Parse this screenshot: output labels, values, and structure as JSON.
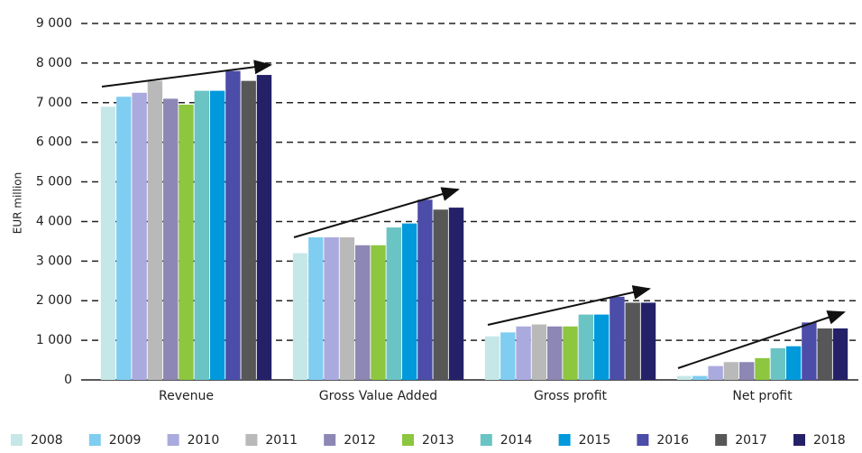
{
  "chart_data": {
    "type": "bar",
    "y_label": "EUR million",
    "categories": [
      "Revenue",
      "Gross Value Added",
      "Gross profit",
      "Net profit"
    ],
    "series": [
      {
        "name": "2008",
        "color": "#c6e7e8",
        "values": [
          6900,
          3200,
          1100,
          100
        ]
      },
      {
        "name": "2009",
        "color": "#7fcdf1",
        "values": [
          7150,
          3600,
          1200,
          100
        ]
      },
      {
        "name": "2010",
        "color": "#aaaadf",
        "values": [
          7250,
          3600,
          1350,
          350
        ]
      },
      {
        "name": "2011",
        "color": "#b9b9b9",
        "values": [
          7550,
          3600,
          1400,
          450
        ]
      },
      {
        "name": "2012",
        "color": "#8d87b5",
        "values": [
          7100,
          3400,
          1350,
          450
        ]
      },
      {
        "name": "2013",
        "color": "#8dc63f",
        "values": [
          6950,
          3400,
          1350,
          550
        ]
      },
      {
        "name": "2014",
        "color": "#6bc4c4",
        "values": [
          7300,
          3850,
          1650,
          800
        ]
      },
      {
        "name": "2015",
        "color": "#0099dc",
        "values": [
          7300,
          3950,
          1650,
          850
        ]
      },
      {
        "name": "2016",
        "color": "#4c4ca9",
        "values": [
          7800,
          4550,
          2100,
          1450
        ]
      },
      {
        "name": "2017",
        "color": "#575757",
        "values": [
          7550,
          4300,
          1950,
          1300
        ]
      },
      {
        "name": "2018",
        "color": "#242168",
        "values": [
          7700,
          4350,
          1950,
          1300
        ]
      }
    ],
    "ylim": [
      0,
      9000
    ],
    "yticks": [
      0,
      {
        "value": 1000,
        "label": "1 000"
      },
      {
        "value": 2000,
        "label": "2 000"
      },
      {
        "value": 3000,
        "label": "3 000"
      },
      {
        "value": 4000,
        "label": "4 000"
      },
      {
        "value": 5000,
        "label": "5 000"
      },
      {
        "value": 6000,
        "label": "6 000"
      },
      {
        "value": 7000,
        "label": "7 000"
      },
      {
        "value": 8000,
        "label": "8 000"
      },
      {
        "value": 9000,
        "label": "9 000"
      }
    ],
    "grid": true
  }
}
